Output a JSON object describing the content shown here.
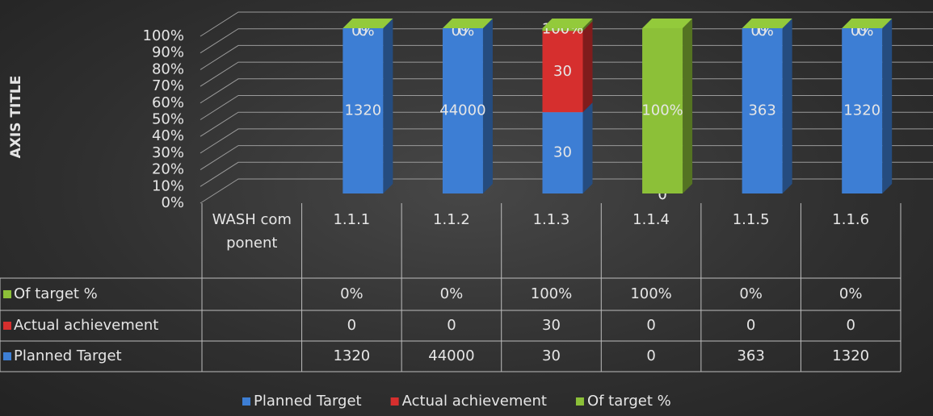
{
  "chart_data": {
    "type": "bar3d_percent_stacked",
    "axis_title": "AXIS TITLE",
    "categories": [
      "WASH component",
      "1.1.1",
      "1.1.2",
      "1.1.3",
      "1.1.4",
      "1.1.5",
      "1.1.6"
    ],
    "series": [
      {
        "name": "Planned Target",
        "color": "#3d7ed4",
        "values": [
          null,
          1320,
          44000,
          30,
          0,
          363,
          1320
        ]
      },
      {
        "name": "Actual achievement",
        "color": "#d62f2e",
        "values": [
          null,
          0,
          0,
          30,
          0,
          0,
          0
        ]
      },
      {
        "name": "Of target %",
        "color": "#8cc038",
        "values": [
          null,
          0,
          0,
          1,
          1,
          0,
          0
        ],
        "value_labels": [
          null,
          "0%",
          "0%",
          "100%",
          "100%",
          "0%",
          "0%"
        ]
      }
    ],
    "ylim": [
      0,
      100
    ],
    "yticks": [
      {
        "value": 0,
        "label": "0%"
      },
      {
        "value": 10,
        "label": "10%"
      },
      {
        "value": 20,
        "label": "20%"
      },
      {
        "value": 30,
        "label": "30%"
      },
      {
        "value": 40,
        "label": "40%"
      },
      {
        "value": 50,
        "label": "50%"
      },
      {
        "value": 60,
        "label": "60%"
      },
      {
        "value": 70,
        "label": "70%"
      },
      {
        "value": 80,
        "label": "80%"
      },
      {
        "value": 90,
        "label": "90%"
      },
      {
        "value": 100,
        "label": "100%"
      }
    ],
    "grid": true,
    "legend": "bottom"
  }
}
